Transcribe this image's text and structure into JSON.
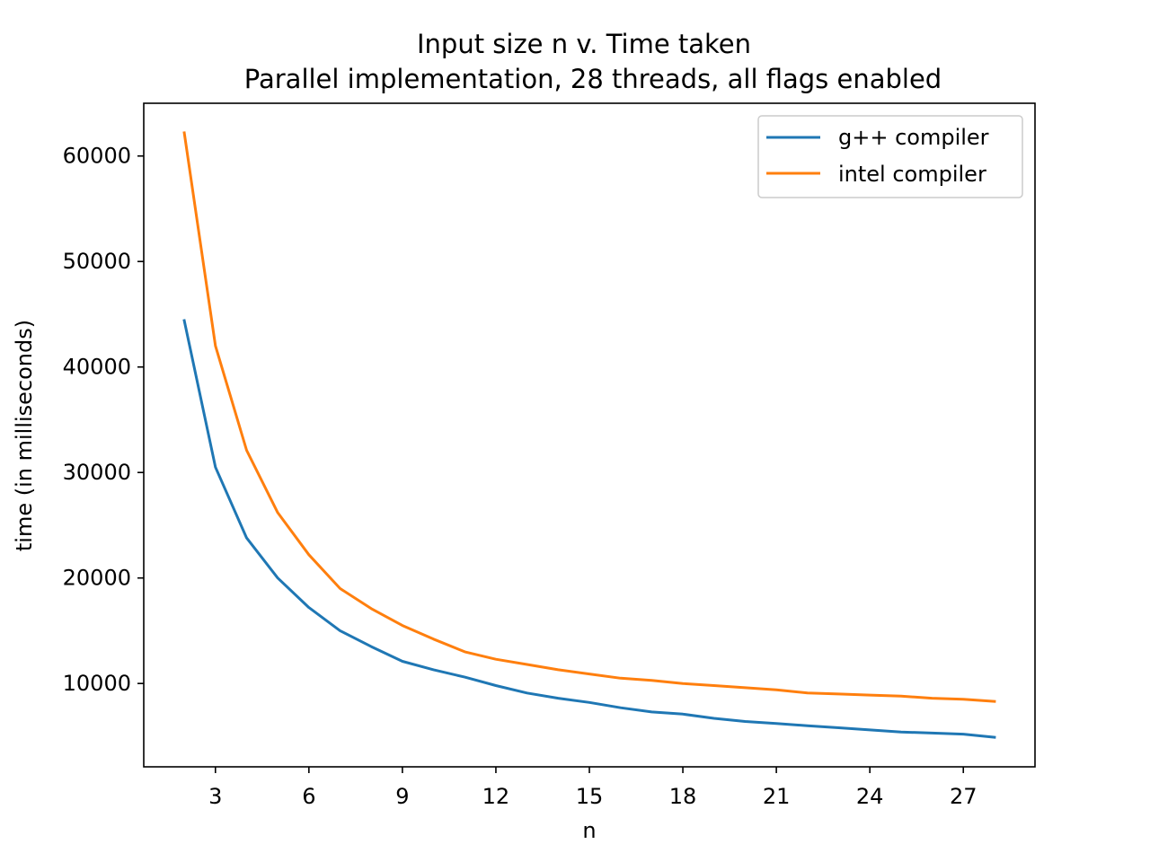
{
  "chart_data": {
    "type": "line",
    "title": "Input size n v. Time taken",
    "subtitle": "Parallel implementation, 28 threads, all flags enabled",
    "xlabel": "n",
    "ylabel": "time (in milliseconds)",
    "xlim": [
      0.7,
      29.3
    ],
    "ylim": [
      2100,
      65000
    ],
    "x_ticks": [
      3,
      6,
      9,
      12,
      15,
      18,
      21,
      24,
      27
    ],
    "y_ticks": [
      10000,
      20000,
      30000,
      40000,
      50000,
      60000
    ],
    "grid": false,
    "legend_position": "top-right",
    "x": [
      2,
      3,
      4,
      5,
      6,
      7,
      8,
      9,
      10,
      11,
      12,
      13,
      14,
      15,
      16,
      17,
      18,
      19,
      20,
      21,
      22,
      23,
      24,
      25,
      26,
      27,
      28
    ],
    "series": [
      {
        "name": "g++ compiler",
        "color": "#1f77b4",
        "values": [
          44400,
          30500,
          23800,
          20000,
          17200,
          15000,
          13500,
          12100,
          11300,
          10600,
          9800,
          9100,
          8600,
          8200,
          7700,
          7300,
          7100,
          6700,
          6400,
          6200,
          6000,
          5800,
          5600,
          5400,
          5300,
          5200,
          4900
        ]
      },
      {
        "name": "intel compiler",
        "color": "#ff7f0e",
        "values": [
          62200,
          42000,
          32100,
          26200,
          22200,
          19000,
          17100,
          15500,
          14200,
          13000,
          12300,
          11800,
          11300,
          10900,
          10500,
          10300,
          10000,
          9800,
          9600,
          9400,
          9100,
          9000,
          8900,
          8800,
          8600,
          8500,
          8300
        ]
      }
    ]
  }
}
